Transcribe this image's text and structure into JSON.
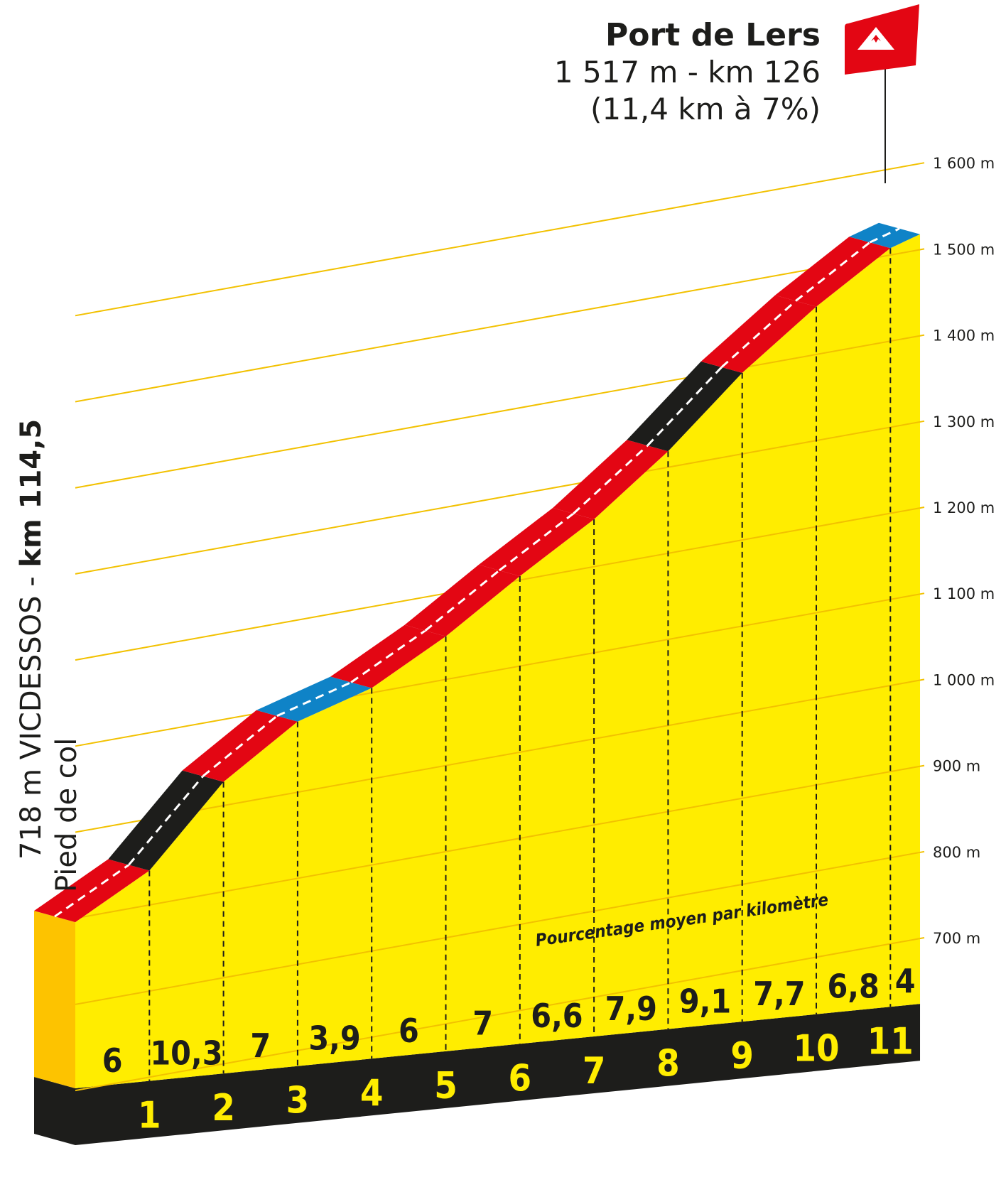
{
  "summit": {
    "name": "Port de Lers",
    "altitude_km": "1 517 m - km 126",
    "climb": "(11,4 km à 7%)"
  },
  "start": {
    "label_regular": "718 m VICDESSOS - ",
    "label_bold": "km 114,5",
    "sublabel": "Pied de col"
  },
  "caption": "Pourcentage moyen par kilomètre",
  "altitude_labels": [
    "1 600 m",
    "1 500 m",
    "1 400 m",
    "1 300 m",
    "1 200 m",
    "1 100 m",
    "1 000  m",
    "900 m",
    "800 m",
    "700 m"
  ],
  "colors": {
    "fill": "#ffed00",
    "side": "#fdc300",
    "base": "#1d1d1b",
    "grade_red": "#e30613",
    "grade_black": "#1d1d1b",
    "grade_blue": "#0f83c7",
    "flag": "#e30613"
  },
  "chart_data": {
    "type": "area",
    "title": "Port de Lers",
    "xlabel": "",
    "ylabel": "",
    "ylim": [
      700,
      1600
    ],
    "x_unit": "km from foot of climb",
    "segments": [
      {
        "km": "1",
        "start_km": 0,
        "end_km": 1,
        "grade": "6",
        "color": "red"
      },
      {
        "km": "2",
        "start_km": 1,
        "end_km": 2,
        "grade": "10,3",
        "color": "black"
      },
      {
        "km": "3",
        "start_km": 2,
        "end_km": 3,
        "grade": "7",
        "color": "red"
      },
      {
        "km": "4",
        "start_km": 3,
        "end_km": 4,
        "grade": "3,9",
        "color": "blue"
      },
      {
        "km": "5",
        "start_km": 4,
        "end_km": 5,
        "grade": "6",
        "color": "red"
      },
      {
        "km": "6",
        "start_km": 5,
        "end_km": 6,
        "grade": "7",
        "color": "red"
      },
      {
        "km": "7",
        "start_km": 6,
        "end_km": 7,
        "grade": "6,6",
        "color": "red"
      },
      {
        "km": "8",
        "start_km": 7,
        "end_km": 8,
        "grade": "7,9",
        "color": "red"
      },
      {
        "km": "9",
        "start_km": 8,
        "end_km": 9,
        "grade": "9,1",
        "color": "black"
      },
      {
        "km": "10",
        "start_km": 9,
        "end_km": 10,
        "grade": "7,7",
        "color": "red"
      },
      {
        "km": "11",
        "start_km": 10,
        "end_km": 11,
        "grade": "6,8",
        "color": "red"
      },
      {
        "km": "",
        "start_km": 11,
        "end_km": 11.4,
        "grade": "4",
        "color": "blue"
      }
    ],
    "elevations_m": [
      718,
      778,
      881,
      951,
      990,
      1050,
      1120,
      1186,
      1265,
      1356,
      1433,
      1501,
      1517
    ]
  }
}
